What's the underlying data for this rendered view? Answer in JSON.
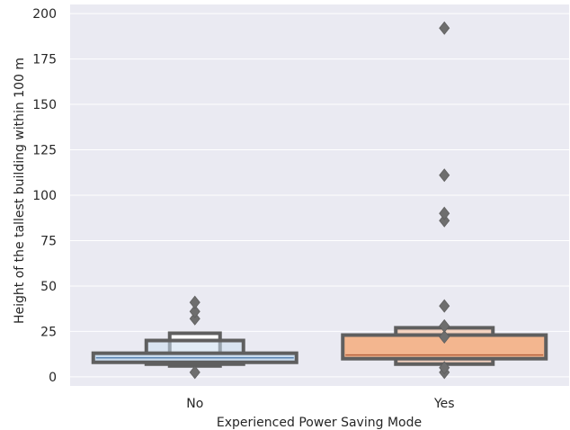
{
  "chart_data": {
    "type": "boxen",
    "title": "",
    "xlabel": "Experienced Power Saving Mode",
    "ylabel": "Height of the tallest building within 100 m",
    "categories": [
      "No",
      "Yes"
    ],
    "ylim": [
      -5,
      205
    ],
    "yticks": [
      0,
      25,
      50,
      75,
      100,
      125,
      150,
      175,
      200
    ],
    "grid": true,
    "background": "#eaeaf2",
    "grid_color": "#ffffff",
    "edge_color": "#5f5f5f",
    "groups": [
      {
        "category": "No",
        "color": "#c9dcef",
        "median": 10.5,
        "boxes": [
          {
            "level": 1,
            "low": 8,
            "high": 13
          },
          {
            "level": 2,
            "low": 7,
            "high": 20
          },
          {
            "level": 3,
            "low": 6,
            "high": 24
          }
        ],
        "outliers": [
          2.5,
          32,
          36,
          41
        ]
      },
      {
        "category": "Yes",
        "color": "#f3b68f",
        "median": 12,
        "boxes": [
          {
            "level": 1,
            "low": 10,
            "high": 23
          },
          {
            "level": 2,
            "low": 7,
            "high": 27
          }
        ],
        "outliers": [
          2.5,
          5,
          22,
          28,
          39,
          86,
          90,
          111,
          192
        ]
      }
    ]
  }
}
